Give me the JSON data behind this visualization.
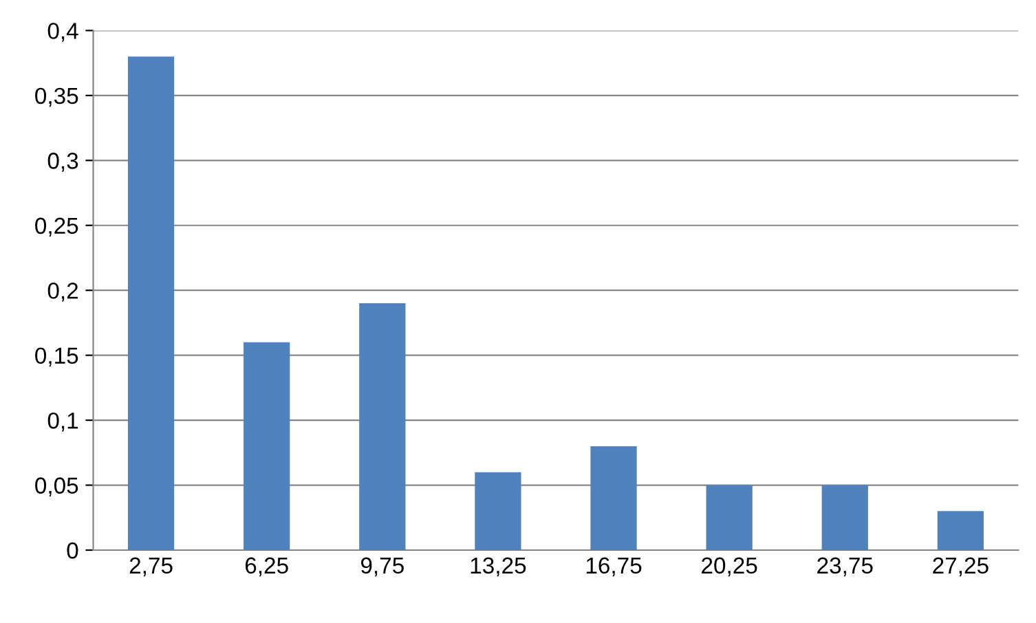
{
  "chart_data": {
    "type": "bar",
    "categories": [
      "2,75",
      "6,25",
      "9,75",
      "13,25",
      "16,75",
      "20,25",
      "23,75",
      "27,25"
    ],
    "values": [
      0.38,
      0.16,
      0.19,
      0.06,
      0.08,
      0.05,
      0.05,
      0.03
    ],
    "color": "#4f81bd",
    "ylim": [
      0,
      0.4
    ],
    "yticks": [
      0,
      {
        "value": 0.05,
        "label": "0,05"
      },
      {
        "value": 0.1,
        "label": "0,1"
      },
      {
        "value": 0.15,
        "label": "0,15"
      },
      {
        "value": 0.2,
        "label": "0,2"
      },
      {
        "value": 0.25,
        "label": "0,25"
      },
      {
        "value": 0.3,
        "label": "0,3"
      },
      {
        "value": 0.35,
        "label": "0,35"
      },
      {
        "value": 0.4,
        "label": "0,4"
      }
    ],
    "grid": "y",
    "legend": false
  }
}
